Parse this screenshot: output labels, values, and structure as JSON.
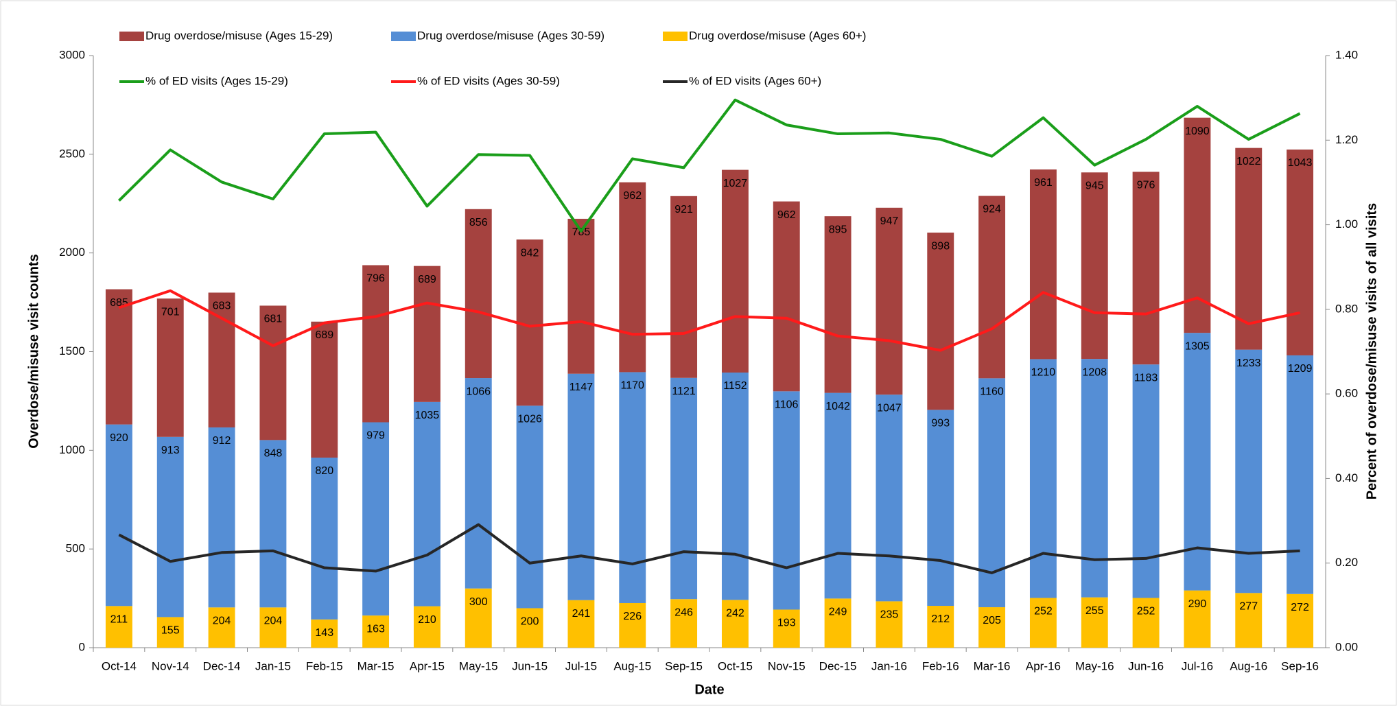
{
  "chart_data": {
    "type": "bar",
    "stacked": true,
    "x_label": "Date",
    "y_label": "Overdose/misuse visit counts",
    "y2_label": "Percent of overdose/misuse visits of all visits",
    "categories": [
      "Oct-14",
      "Nov-14",
      "Dec-14",
      "Jan-15",
      "Feb-15",
      "Mar-15",
      "Apr-15",
      "May-15",
      "Jun-15",
      "Jul-15",
      "Aug-15",
      "Sep-15",
      "Oct-15",
      "Nov-15",
      "Dec-15",
      "Jan-16",
      "Feb-16",
      "Mar-16",
      "Apr-16",
      "May-16",
      "Jun-16",
      "Jul-16",
      "Aug-16",
      "Sep-16"
    ],
    "series": [
      {
        "name": "Drug overdose/misuse (Ages 15-29)",
        "type": "bar",
        "color": "#a5423f",
        "values": [
          685,
          701,
          683,
          681,
          689,
          796,
          689,
          856,
          842,
          785,
          962,
          921,
          1027,
          962,
          895,
          947,
          898,
          924,
          961,
          945,
          976,
          1090,
          1022,
          1043
        ]
      },
      {
        "name": "Drug overdose/misuse (Ages 30-59)",
        "type": "bar",
        "color": "#558ed5",
        "values": [
          920,
          913,
          912,
          848,
          820,
          979,
          1035,
          1066,
          1026,
          1147,
          1170,
          1121,
          1152,
          1106,
          1042,
          1047,
          993,
          1160,
          1210,
          1208,
          1183,
          1305,
          1233,
          1209
        ]
      },
      {
        "name": "Drug overdose/misuse (Ages 60+)",
        "type": "bar",
        "color": "#ffc000",
        "values": [
          211,
          155,
          204,
          204,
          143,
          163,
          210,
          300,
          200,
          241,
          226,
          246,
          242,
          193,
          249,
          235,
          212,
          205,
          252,
          255,
          252,
          290,
          277,
          272
        ]
      },
      {
        "name": "% of ED visits (Ages 15-29)",
        "type": "line",
        "axis": "y2",
        "color": "#1a9e1a",
        "values": [
          1.057,
          1.177,
          1.101,
          1.061,
          1.215,
          1.219,
          1.044,
          1.166,
          1.164,
          0.985,
          1.156,
          1.135,
          1.295,
          1.236,
          1.215,
          1.217,
          1.202,
          1.162,
          1.253,
          1.141,
          1.202,
          1.28,
          1.202,
          1.263
        ]
      },
      {
        "name": "% of ED visits (Ages 30-59)",
        "type": "line",
        "axis": "y2",
        "color": "#ff1a1a",
        "values": [
          0.804,
          0.844,
          0.779,
          0.714,
          0.768,
          0.783,
          0.815,
          0.794,
          0.76,
          0.771,
          0.741,
          0.743,
          0.783,
          0.779,
          0.737,
          0.726,
          0.703,
          0.754,
          0.84,
          0.792,
          0.789,
          0.827,
          0.766,
          0.792
        ]
      },
      {
        "name": "% of ED visits (Ages 60+)",
        "type": "line",
        "axis": "y2",
        "color": "#262626",
        "values": [
          0.267,
          0.204,
          0.225,
          0.229,
          0.189,
          0.181,
          0.219,
          0.291,
          0.2,
          0.217,
          0.198,
          0.227,
          0.221,
          0.189,
          0.223,
          0.217,
          0.206,
          0.177,
          0.223,
          0.208,
          0.211,
          0.236,
          0.223,
          0.229
        ]
      }
    ],
    "ylim": [
      0,
      3000
    ],
    "yticks": [
      0,
      500,
      1000,
      1500,
      2000,
      2500,
      3000
    ],
    "y2lim": [
      0,
      1.4
    ],
    "y2ticks": [
      {
        "value": 0,
        "label": "0.00"
      },
      {
        "value": 0.2,
        "label": "0.20"
      },
      {
        "value": 0.4,
        "label": "0.40"
      },
      {
        "value": 0.6,
        "label": "0.60"
      },
      {
        "value": 0.8,
        "label": "0.80"
      },
      {
        "value": 1,
        "label": "1.00"
      },
      {
        "value": 1.2,
        "label": "1.20"
      },
      {
        "value": 1.4,
        "label": "1.40"
      }
    ],
    "grid": false,
    "legend": "top",
    "data_labels": true
  }
}
